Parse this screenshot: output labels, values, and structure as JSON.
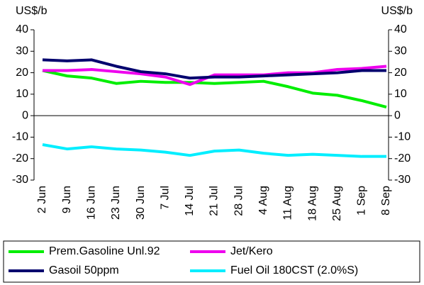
{
  "chart_data": {
    "type": "line",
    "ylabel": "US$/b",
    "y2label": "US$/b",
    "categories": [
      "2 Jun",
      "9 Jun",
      "16 Jun",
      "23 Jun",
      "30 Jun",
      "7 Jul",
      "14 Jul",
      "21 Jul",
      "28 Jul",
      "4 Aug",
      "11 Aug",
      "18 Aug",
      "25 Aug",
      "1 Sep",
      "8 Sep"
    ],
    "series": [
      {
        "name": "Prem.Gasoline Unl.92",
        "color": "#00ee00",
        "values": [
          21,
          18.5,
          17.5,
          15,
          16,
          15.5,
          15.5,
          15,
          15.5,
          16,
          13.5,
          10.5,
          9.5,
          7,
          4
        ]
      },
      {
        "name": "Jet/Kero",
        "color": "#ee00ee",
        "values": [
          21,
          21,
          21.5,
          20.5,
          19.5,
          18,
          14.5,
          19,
          19,
          19,
          20,
          20,
          21.5,
          22,
          23
        ]
      },
      {
        "name": "Gasoil 50ppm",
        "color": "#00006e",
        "values": [
          26,
          25.5,
          26,
          23,
          20.5,
          19.5,
          17.5,
          18,
          18,
          18.5,
          19,
          19.5,
          20,
          21,
          21
        ]
      },
      {
        "name": "Fuel Oil 180CST (2.0%S)",
        "color": "#00eeff",
        "values": [
          -13.5,
          -15.5,
          -14.5,
          -15.5,
          -16,
          -17,
          -18.5,
          -16.5,
          -16,
          -17.5,
          -18.5,
          -18,
          -18.5,
          -19,
          -19
        ]
      }
    ],
    "ylim": [
      -30,
      40
    ],
    "yticks": [
      -30,
      -20,
      -10,
      0,
      10,
      20,
      30,
      40
    ],
    "y2lim": [
      -30,
      40
    ],
    "y2ticks": [
      -30,
      -20,
      -10,
      0,
      10,
      20,
      30,
      40
    ],
    "grid": false
  }
}
